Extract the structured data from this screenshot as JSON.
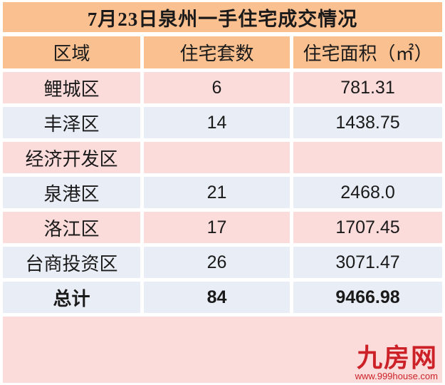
{
  "title": "7月23日泉州一手住宅成交情况",
  "table": {
    "headers": [
      "区域",
      "住宅套数",
      "住宅面积（㎡）"
    ],
    "rows": [
      {
        "region": "鲤城区",
        "units": "6",
        "area": "781.31"
      },
      {
        "region": "丰泽区",
        "units": "14",
        "area": "1438.75"
      },
      {
        "region": "经济开发区",
        "units": "",
        "area": ""
      },
      {
        "region": "泉港区",
        "units": "21",
        "area": "2468.0"
      },
      {
        "region": "洛江区",
        "units": "17",
        "area": "1707.45"
      },
      {
        "region": "台商投资区",
        "units": "26",
        "area": "3071.47"
      }
    ],
    "total": {
      "region": "总计",
      "units": "84",
      "area": "9466.98"
    }
  },
  "footer": {
    "logo_text": "九房网",
    "website": "www.999house.com"
  },
  "colors": {
    "header_bg": "#FAC090",
    "pink_row_bg": "#FBDCDB",
    "blue_row_bg": "#E9EDF5",
    "logo_red": "#CC2127",
    "text": "#1a1a1a"
  },
  "chart_data": {
    "type": "table",
    "title": "7月23日泉州一手住宅成交情况",
    "columns": [
      "区域",
      "住宅套数",
      "住宅面积（㎡）"
    ],
    "rows": [
      [
        "鲤城区",
        6,
        781.31
      ],
      [
        "丰泽区",
        14,
        1438.75
      ],
      [
        "经济开发区",
        null,
        null
      ],
      [
        "泉港区",
        21,
        2468.0
      ],
      [
        "洛江区",
        17,
        1707.45
      ],
      [
        "台商投资区",
        26,
        3071.47
      ],
      [
        "总计",
        84,
        9466.98
      ]
    ]
  }
}
